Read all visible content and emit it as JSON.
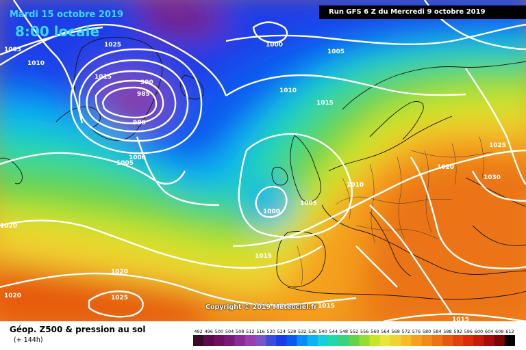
{
  "header": {
    "date": "Mardi 15 octobre 2019",
    "time": "8:00 locale",
    "run": "Run GFS 6 Z du Mercredi 9 octobre 2019"
  },
  "footer": {
    "title": "Géop. Z500 & pression au sol",
    "subtitle": "(+ 144h)",
    "copyright": "Copyright © 2019 Meteociel.fr"
  },
  "scale": {
    "values": [
      "492",
      "496",
      "500",
      "504",
      "508",
      "512",
      "516",
      "520",
      "524",
      "528",
      "532",
      "536",
      "540",
      "544",
      "548",
      "552",
      "556",
      "560",
      "564",
      "568",
      "572",
      "576",
      "580",
      "584",
      "588",
      "592",
      "596",
      "600",
      "604",
      "608",
      "612"
    ],
    "colors": [
      "#3a0a2a",
      "#5a0d4a",
      "#6e1060",
      "#7a1a78",
      "#8a2c95",
      "#9a3fb0",
      "#7a55c8",
      "#3c4cdc",
      "#1a3ce8",
      "#0a5af0",
      "#0a8cf5",
      "#0ab4f0",
      "#14d0d8",
      "#22d8a8",
      "#3ad27a",
      "#64d24c",
      "#96dc32",
      "#c8e628",
      "#e6e63c",
      "#f0d232",
      "#f5bc28",
      "#f5a01e",
      "#f08c19",
      "#eb7514",
      "#e65a0f",
      "#e1410a",
      "#dc2a0a",
      "#c81a0a",
      "#aa0a0a",
      "#780508",
      "#000000"
    ]
  },
  "isobar_labels": [
    {
      "text": "1005"
    },
    {
      "text": "1010"
    },
    {
      "text": "1025"
    },
    {
      "text": "1000"
    },
    {
      "text": "1005"
    },
    {
      "text": "1015"
    },
    {
      "text": "990"
    },
    {
      "text": "985"
    },
    {
      "text": "980"
    },
    {
      "text": "1010"
    },
    {
      "text": "1015"
    },
    {
      "text": "1000"
    },
    {
      "text": "1005"
    },
    {
      "text": "1025"
    },
    {
      "text": "1020"
    },
    {
      "text": "1030"
    },
    {
      "text": "1010"
    },
    {
      "text": "1000"
    },
    {
      "text": "1005"
    },
    {
      "text": "1015"
    },
    {
      "text": "1020"
    },
    {
      "text": "1020"
    },
    {
      "text": "1025"
    },
    {
      "text": "1020"
    },
    {
      "text": "1015"
    },
    {
      "text": "1015"
    },
    {
      "text": "1010"
    }
  ]
}
